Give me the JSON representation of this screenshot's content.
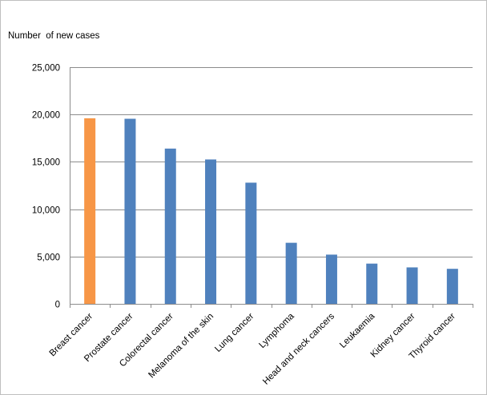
{
  "chart_data": {
    "type": "bar",
    "ylabel": "Number  of new cases",
    "categories": [
      "Breast cancer",
      "Prostate cancer",
      "Colorectal cancer",
      "Melanoma of the skin",
      "Lung cancer",
      "Lymphoma",
      "Head and neck cancers",
      "Leukaemia",
      "Kidney cancer",
      "Thyroid cancer"
    ],
    "values": [
      19600,
      19550,
      16400,
      15250,
      12800,
      6450,
      5200,
      4250,
      3850,
      3700
    ],
    "highlight_index": 0,
    "colors": {
      "bar": "#4f81bd",
      "highlight": "#f79646",
      "grid": "#8c8c8c"
    },
    "ylim": [
      0,
      25000
    ],
    "yticks": [
      0,
      5000,
      10000,
      15000,
      20000,
      25000
    ],
    "ytick_labels": [
      "0",
      "5,000",
      "10,000",
      "15,000",
      "20,000",
      "25,000"
    ],
    "grid": true
  }
}
